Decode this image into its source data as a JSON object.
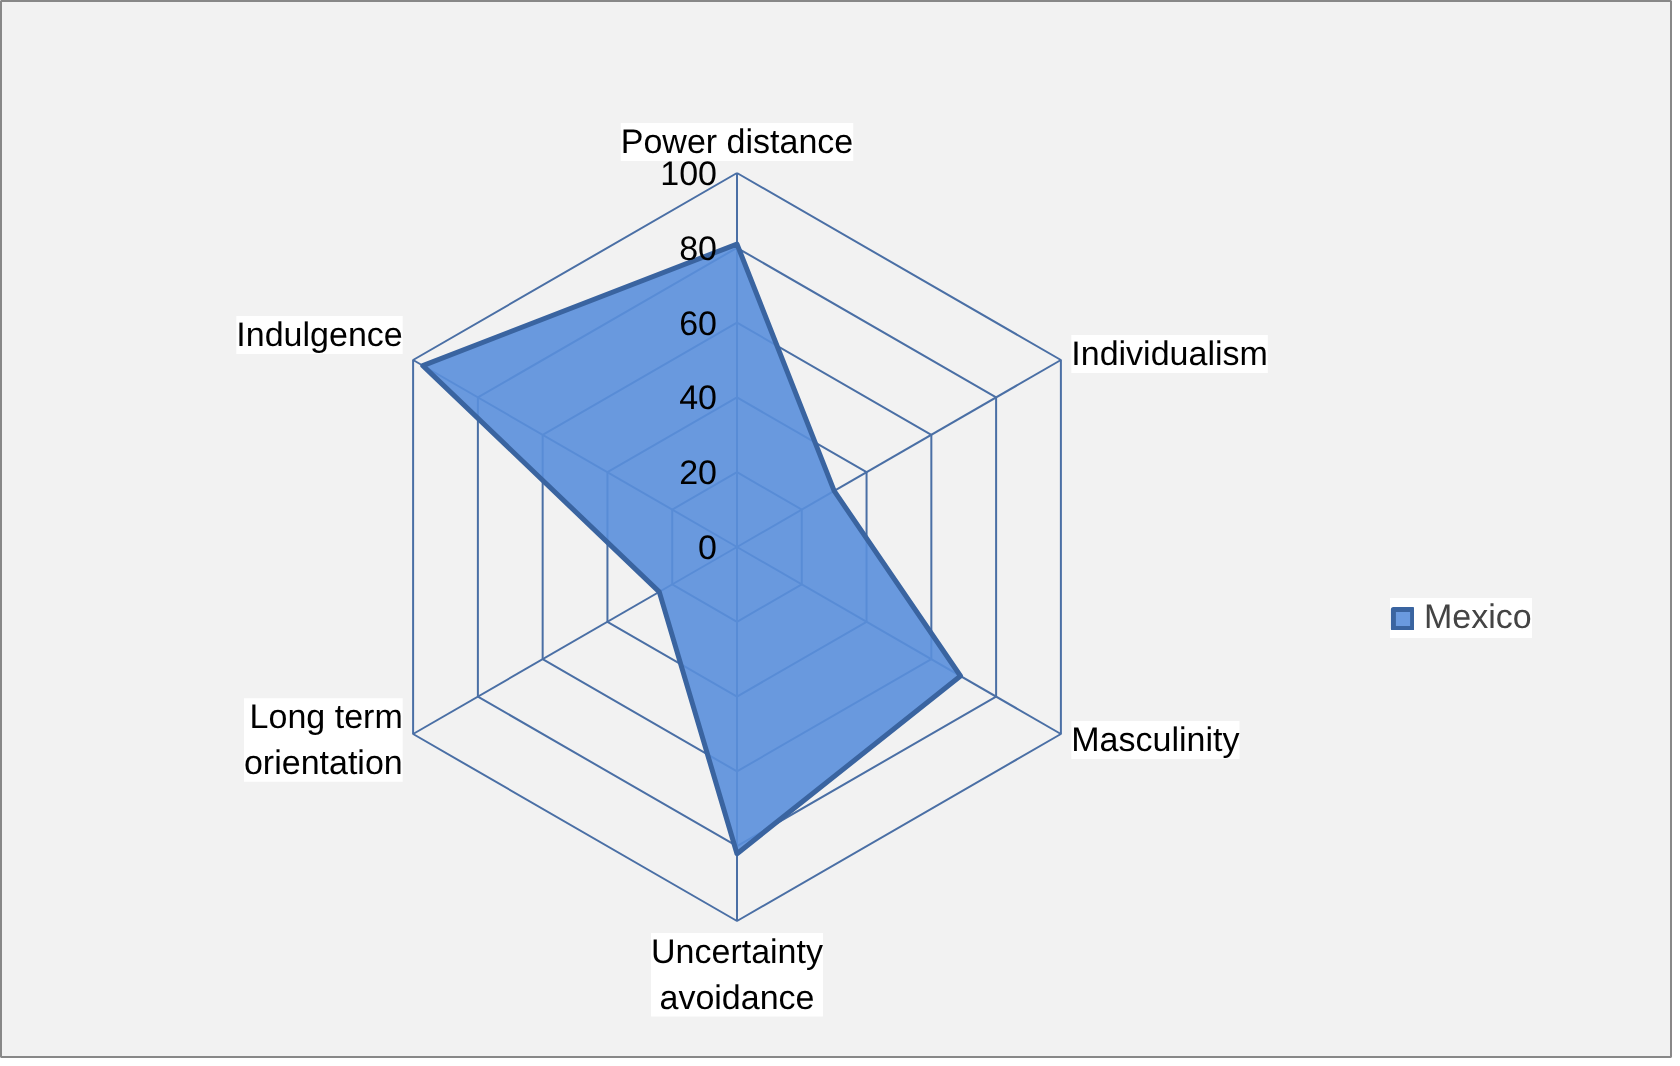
{
  "chart_data": {
    "type": "radar",
    "categories": [
      "Power distance",
      "Individualism",
      "Masculinity",
      "Uncertainty avoidance",
      "Long term orientation",
      "Indulgence"
    ],
    "series": [
      {
        "name": "Mexico",
        "color": "#5a8fdc",
        "values": [
          81,
          30,
          69,
          82,
          24,
          97
        ]
      }
    ],
    "ylim": [
      0,
      100
    ],
    "yticks": [
      0,
      20,
      40,
      60,
      80,
      100
    ],
    "legend": "right"
  }
}
